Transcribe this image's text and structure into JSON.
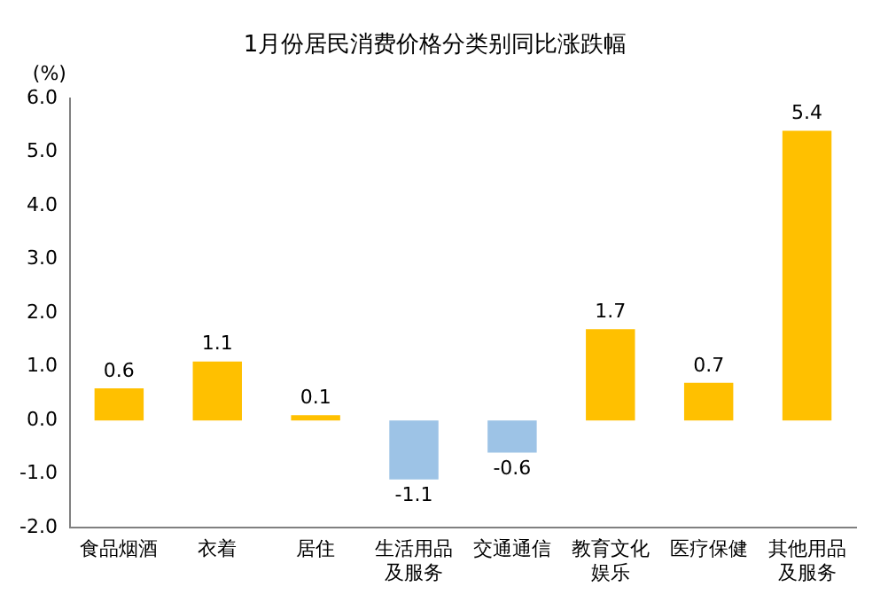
{
  "chart_data": {
    "type": "bar",
    "title": "1月份居民消费价格分类别同比涨跌幅",
    "ylabel": "(%)",
    "categories": [
      "食品烟酒",
      "衣着",
      "居住",
      "生活用品及服务",
      "交通通信",
      "教育文化娱乐",
      "医疗保健",
      "其他用品及服务"
    ],
    "values": [
      0.6,
      1.1,
      0.1,
      -1.1,
      -0.6,
      1.7,
      0.7,
      5.4
    ],
    "colors": [
      "#ffc000",
      "#ffc000",
      "#ffc000",
      "#9dc3e6",
      "#9dc3e6",
      "#ffc000",
      "#ffc000",
      "#ffc000"
    ],
    "ylim": [
      -2,
      6
    ],
    "yticks": [
      {
        "value": -2,
        "label": "-2.0"
      },
      {
        "value": -1,
        "label": "-1.0"
      },
      {
        "value": 0,
        "label": "0.0"
      },
      {
        "value": 1,
        "label": "1.0"
      },
      {
        "value": 2,
        "label": "2.0"
      },
      {
        "value": 3,
        "label": "3.0"
      },
      {
        "value": 4,
        "label": "4.0"
      },
      {
        "value": 5,
        "label": "5.0"
      },
      {
        "value": 6,
        "label": "6.0"
      }
    ],
    "data_labels": true,
    "grid": false,
    "legend": false
  }
}
